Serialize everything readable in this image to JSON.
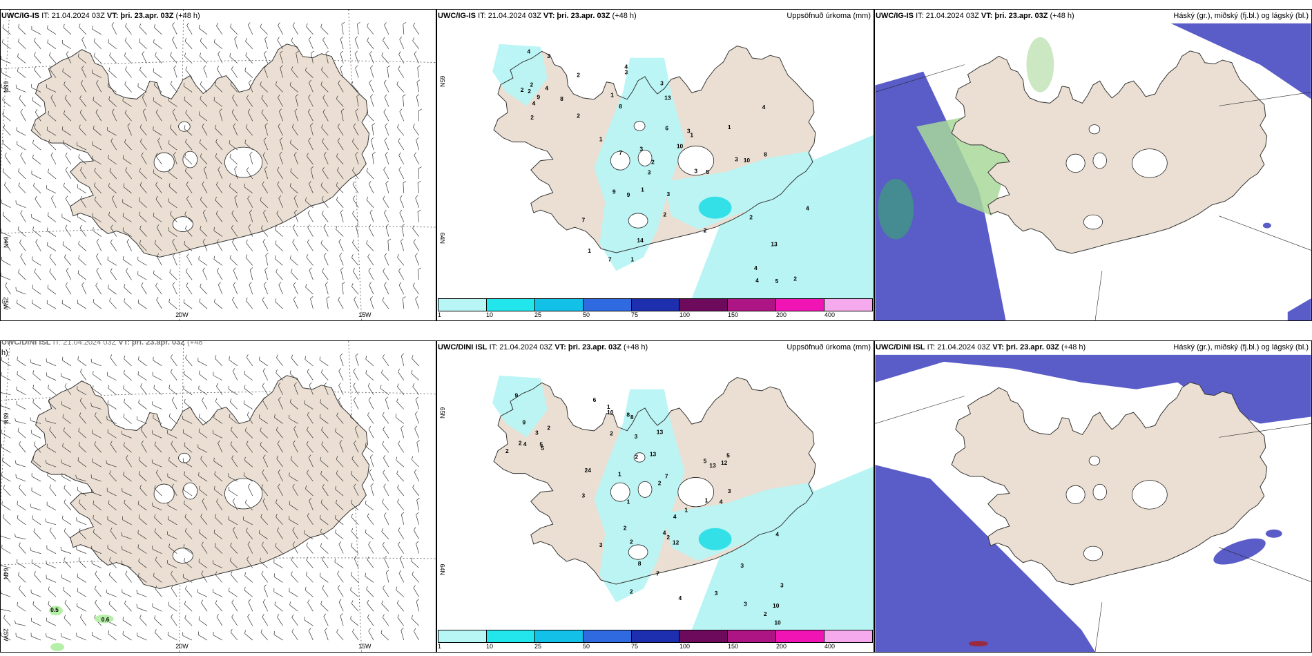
{
  "colors": {
    "land": "#eadfd2",
    "precip_light": "#b8f4f4",
    "precip_cyan": "#33e0e8",
    "cloud_blue": "#5a5cc8",
    "cloud_green": "#a8d89a",
    "cloud_teal": "#3aa07a"
  },
  "panels": {
    "top_wind": {
      "header_source": "UWC/IG-IS",
      "header_it": "IT: 21.04.2024 03Z",
      "header_vt_label": "VT:",
      "header_vt_date": "þri. 23.apr. 03Z",
      "header_lead": "(+48 h)",
      "lat_labels": [
        "65N",
        "64N",
        "25W"
      ],
      "lon_labels": [
        "20W",
        "15W"
      ]
    },
    "top_precip": {
      "header_source": "UWC/IG-IS",
      "header_it": "IT: 21.04.2024 03Z",
      "header_vt_label": "VT:",
      "header_vt_date": "þri. 23.apr. 03Z",
      "header_lead": "(+48 h)",
      "right_title": "Uppsöfnuð úrkoma (mm)",
      "lat_labels": [
        "65N",
        "64N"
      ],
      "values": [
        "2",
        "2",
        "1",
        "3",
        "2",
        "5",
        "4",
        "2",
        "2",
        "3",
        "1",
        "2",
        "2",
        "1",
        "6",
        "4",
        "7",
        "4",
        "9",
        "8",
        "3",
        "3",
        "7",
        "2",
        "2",
        "1",
        "3",
        "1",
        "1",
        "2",
        "4",
        "4",
        "13",
        "5",
        "9",
        "4",
        "4",
        "8",
        "10",
        "10",
        "9",
        "13",
        "3",
        "7",
        "3",
        "8",
        "14",
        "4",
        "2",
        "3",
        "3",
        "1"
      ]
    },
    "top_cloud": {
      "header_source": "UWC/IG-IS",
      "header_it": "IT: 21.04.2024 03Z",
      "header_vt_label": "VT:",
      "header_vt_date": "þri. 23.apr. 03Z",
      "header_lead": "(+48 h)",
      "right_title": "Háský (gr.), miðský (fj.bl.) og lágský (bl.)"
    },
    "bot_wind": {
      "header_source": "UWC/DINI ISL",
      "header_it": "IT: 21.04.2024 03Z",
      "header_vt_label": "VT:",
      "header_vt_date": "þri. 23.apr. 03Z",
      "header_lead": "(+48",
      "header_wrap": "h)",
      "lat_labels": [
        "65N",
        "64N",
        "25W"
      ],
      "lon_labels": [
        "20W",
        "15W"
      ],
      "gust_values": [
        "0.5",
        "0.6"
      ]
    },
    "bot_precip": {
      "header_source": "UWC/DINI ISL",
      "header_it": "IT: 21.04.2024 03Z",
      "header_vt_label": "VT:",
      "header_vt_date": "þri. 23.apr. 03Z",
      "header_lead": "(+48 h)",
      "right_title": "Uppsöfnuð úrkoma (mm)",
      "lat_labels": [
        "65N",
        "64N"
      ],
      "values": [
        "2",
        "1",
        "2",
        "3",
        "2",
        "4",
        "5",
        "1",
        "2",
        "1",
        "4",
        "3",
        "2",
        "6",
        "4",
        "5",
        "7",
        "3",
        "9",
        "8",
        "8",
        "1",
        "2",
        "3",
        "3",
        "10",
        "13",
        "5",
        "12",
        "10",
        "5",
        "24",
        "13",
        "4",
        "8",
        "10",
        "4",
        "2",
        "2",
        "4",
        "3",
        "3",
        "9",
        "3",
        "7",
        "13",
        "2",
        "2",
        "2",
        "1",
        "3",
        "12"
      ]
    },
    "bot_cloud": {
      "header_source": "UWC/DINI ISL",
      "header_it": "IT: 21.04.2024 03Z",
      "header_vt_label": "VT:",
      "header_vt_date": "þri. 23.apr. 03Z",
      "header_lead": "(+48 h)",
      "right_title": "Háský (gr.), miðský (fj.bl.) og lágský (bl.)"
    }
  },
  "colorbar": {
    "colors": [
      "#b8f6f6",
      "#22e6ec",
      "#12c0e8",
      "#2f6ae0",
      "#1d2fae",
      "#6d0a5c",
      "#ad1484",
      "#f014b4",
      "#f4aaec"
    ],
    "ticks": [
      "1",
      "10",
      "25",
      "50",
      "75",
      "100",
      "150",
      "200",
      "400"
    ]
  }
}
